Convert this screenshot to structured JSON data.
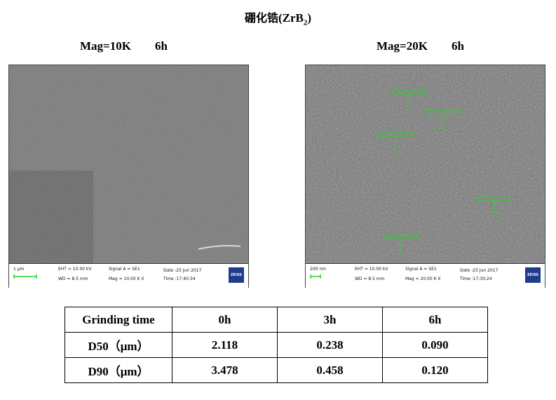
{
  "title": {
    "zh": "硼化锆",
    "formula": "(ZrB",
    "sub": "2",
    "close": ")"
  },
  "left": {
    "caption_mag": "Mag=10K",
    "caption_time": "6h",
    "info": {
      "scale": "1 µm",
      "eht": "EHT = 10.00 kV",
      "wd": "WD = 8.5 mm",
      "signal": "Signal A = SE1",
      "mag": "Mag = 10.00 K X",
      "date": "Date :25 Jun 2017",
      "time": "Time :17:40:34",
      "logo": "ZEISS"
    }
  },
  "right": {
    "caption_mag": "Mag=20K",
    "caption_time": "6h",
    "info": {
      "scale": "200 nm",
      "eht": "EHT = 10.00 kV",
      "wd": "WD = 8.5 mm",
      "signal": "Signal A = SE1",
      "mag": "Mag = 20.00 K X",
      "date": "Date :25 Jun 2017",
      "time": "Time :17:30:24",
      "logo": "ZEISS"
    }
  },
  "table": {
    "header": [
      "Grinding time",
      "0h",
      "3h",
      "6h"
    ],
    "rows": [
      [
        "D50（μm）",
        "2.118",
        "0.238",
        "0.090"
      ],
      [
        "D90（μm）",
        "3.478",
        "0.458",
        "0.120"
      ]
    ]
  },
  "colors": {
    "sem_gray": "#6e6e6e",
    "annotation_green": "#2fd12f",
    "zeiss_blue": "#1f3c8a"
  }
}
